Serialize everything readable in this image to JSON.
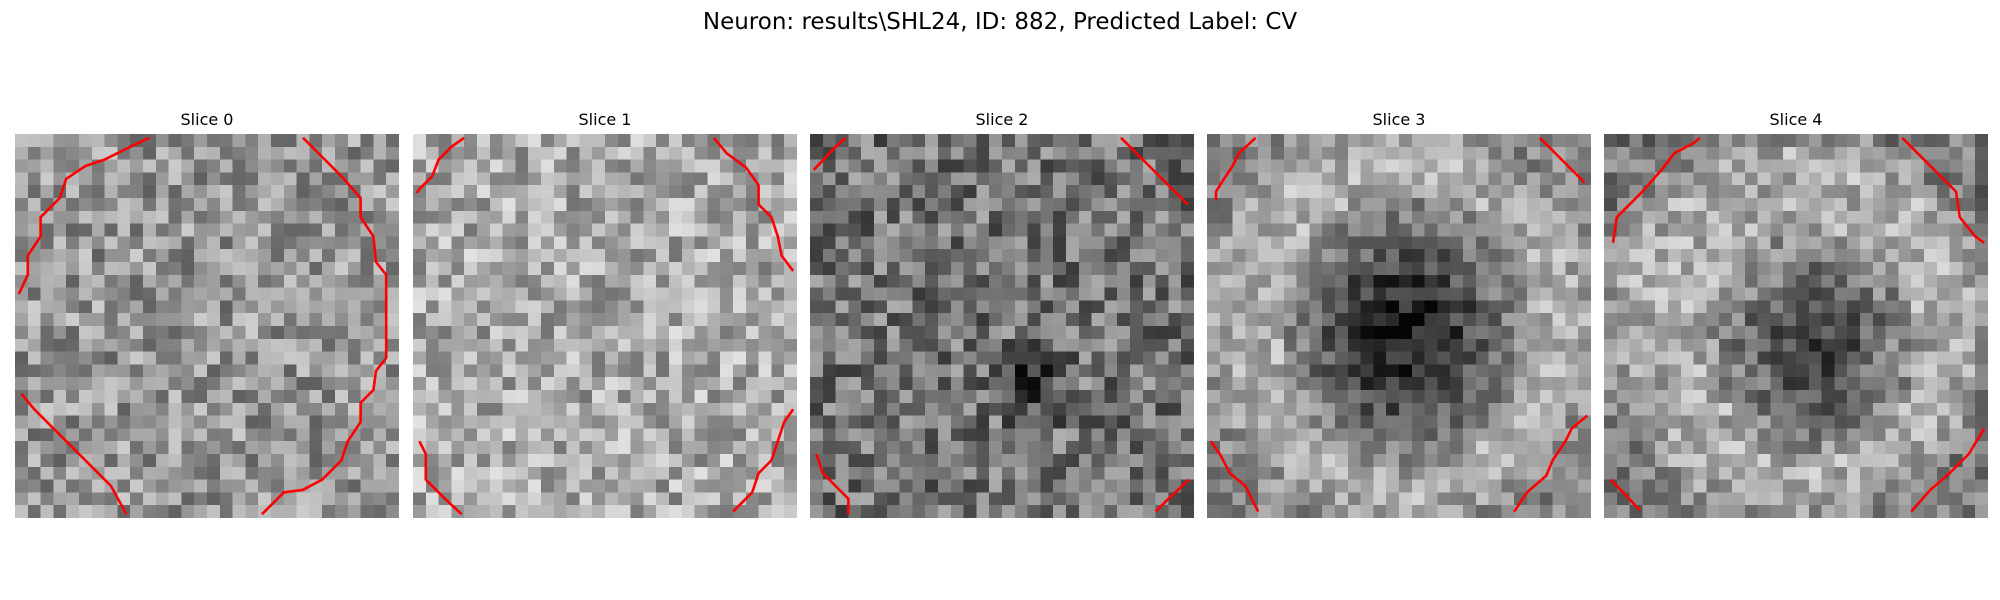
{
  "figure": {
    "title": "Neuron: results\\SHL24, ID: 882, Predicted Label: CV",
    "colors": {
      "contour": "#ff0000",
      "background": "#ffffff"
    },
    "colormap": "gray",
    "slices": [
      {
        "title": "Slice 0"
      },
      {
        "title": "Slice 1"
      },
      {
        "title": "Slice 2"
      },
      {
        "title": "Slice 3"
      },
      {
        "title": "Slice 4"
      }
    ]
  }
}
